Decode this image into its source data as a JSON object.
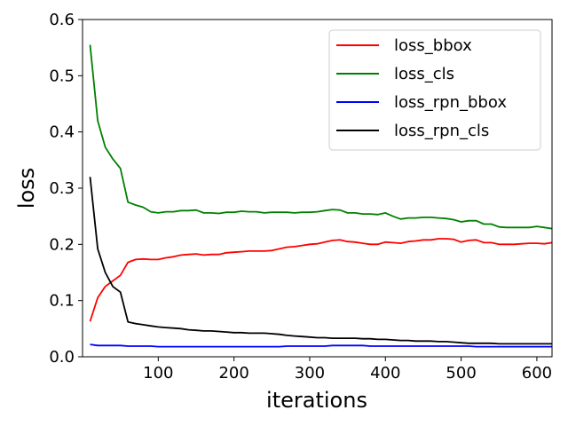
{
  "chart_data": {
    "type": "line",
    "title": "",
    "xlabel": "iterations",
    "ylabel": "loss",
    "xlim": [
      0,
      620
    ],
    "ylim": [
      0.0,
      0.6
    ],
    "xticks": [
      100,
      200,
      300,
      400,
      500,
      600
    ],
    "yticks": [
      0.0,
      0.1,
      0.2,
      0.3,
      0.4,
      0.5,
      0.6
    ],
    "xtick_labels": [
      "100",
      "200",
      "300",
      "400",
      "500",
      "600"
    ],
    "ytick_labels": [
      "0.0",
      "0.1",
      "0.2",
      "0.3",
      "0.4",
      "0.5",
      "0.6"
    ],
    "grid": false,
    "legend_position": "top-right",
    "x": [
      10,
      20,
      30,
      40,
      50,
      60,
      70,
      80,
      90,
      100,
      110,
      120,
      130,
      140,
      150,
      160,
      170,
      180,
      190,
      200,
      210,
      220,
      230,
      240,
      250,
      260,
      270,
      280,
      290,
      300,
      310,
      320,
      330,
      340,
      350,
      360,
      370,
      380,
      390,
      400,
      410,
      420,
      430,
      440,
      450,
      460,
      470,
      480,
      490,
      500,
      510,
      520,
      530,
      540,
      550,
      560,
      570,
      580,
      590,
      600,
      610,
      620
    ],
    "series": [
      {
        "name": "loss_bbox",
        "color": "#ff0000",
        "values": [
          0.063,
          0.105,
          0.125,
          0.135,
          0.145,
          0.168,
          0.173,
          0.174,
          0.173,
          0.173,
          0.176,
          0.178,
          0.181,
          0.182,
          0.183,
          0.181,
          0.182,
          0.182,
          0.185,
          0.186,
          0.187,
          0.188,
          0.188,
          0.188,
          0.189,
          0.192,
          0.195,
          0.196,
          0.198,
          0.2,
          0.201,
          0.204,
          0.207,
          0.208,
          0.205,
          0.204,
          0.202,
          0.2,
          0.2,
          0.204,
          0.203,
          0.202,
          0.205,
          0.206,
          0.208,
          0.208,
          0.21,
          0.21,
          0.209,
          0.204,
          0.207,
          0.208,
          0.203,
          0.203,
          0.2,
          0.2,
          0.2,
          0.201,
          0.202,
          0.202,
          0.201,
          0.203
        ]
      },
      {
        "name": "loss_cls",
        "color": "#008000",
        "values": [
          0.555,
          0.42,
          0.373,
          0.352,
          0.335,
          0.275,
          0.27,
          0.266,
          0.258,
          0.256,
          0.258,
          0.258,
          0.26,
          0.26,
          0.261,
          0.256,
          0.256,
          0.255,
          0.257,
          0.257,
          0.259,
          0.258,
          0.258,
          0.256,
          0.257,
          0.257,
          0.257,
          0.256,
          0.257,
          0.257,
          0.258,
          0.26,
          0.262,
          0.261,
          0.256,
          0.256,
          0.254,
          0.254,
          0.253,
          0.256,
          0.25,
          0.245,
          0.247,
          0.247,
          0.248,
          0.248,
          0.247,
          0.246,
          0.244,
          0.24,
          0.242,
          0.242,
          0.236,
          0.236,
          0.231,
          0.23,
          0.23,
          0.23,
          0.23,
          0.232,
          0.23,
          0.228
        ]
      },
      {
        "name": "loss_rpn_bbox",
        "color": "#0000ff",
        "values": [
          0.022,
          0.02,
          0.02,
          0.02,
          0.02,
          0.019,
          0.019,
          0.019,
          0.019,
          0.018,
          0.018,
          0.018,
          0.018,
          0.018,
          0.018,
          0.018,
          0.018,
          0.018,
          0.018,
          0.018,
          0.018,
          0.018,
          0.018,
          0.018,
          0.018,
          0.018,
          0.019,
          0.019,
          0.019,
          0.019,
          0.019,
          0.019,
          0.02,
          0.02,
          0.02,
          0.02,
          0.02,
          0.019,
          0.019,
          0.019,
          0.019,
          0.019,
          0.019,
          0.019,
          0.019,
          0.019,
          0.019,
          0.019,
          0.019,
          0.019,
          0.019,
          0.018,
          0.018,
          0.018,
          0.018,
          0.018,
          0.018,
          0.018,
          0.018,
          0.018,
          0.018,
          0.018
        ]
      },
      {
        "name": "loss_rpn_cls",
        "color": "#000000",
        "values": [
          0.32,
          0.192,
          0.15,
          0.125,
          0.115,
          0.062,
          0.059,
          0.057,
          0.055,
          0.053,
          0.052,
          0.051,
          0.05,
          0.048,
          0.047,
          0.046,
          0.046,
          0.045,
          0.044,
          0.043,
          0.043,
          0.042,
          0.042,
          0.042,
          0.041,
          0.04,
          0.038,
          0.037,
          0.036,
          0.035,
          0.034,
          0.034,
          0.033,
          0.033,
          0.033,
          0.033,
          0.032,
          0.032,
          0.031,
          0.031,
          0.03,
          0.029,
          0.029,
          0.028,
          0.028,
          0.028,
          0.027,
          0.027,
          0.026,
          0.025,
          0.024,
          0.024,
          0.024,
          0.024,
          0.023,
          0.023,
          0.023,
          0.023,
          0.023,
          0.023,
          0.023,
          0.023
        ]
      }
    ]
  }
}
